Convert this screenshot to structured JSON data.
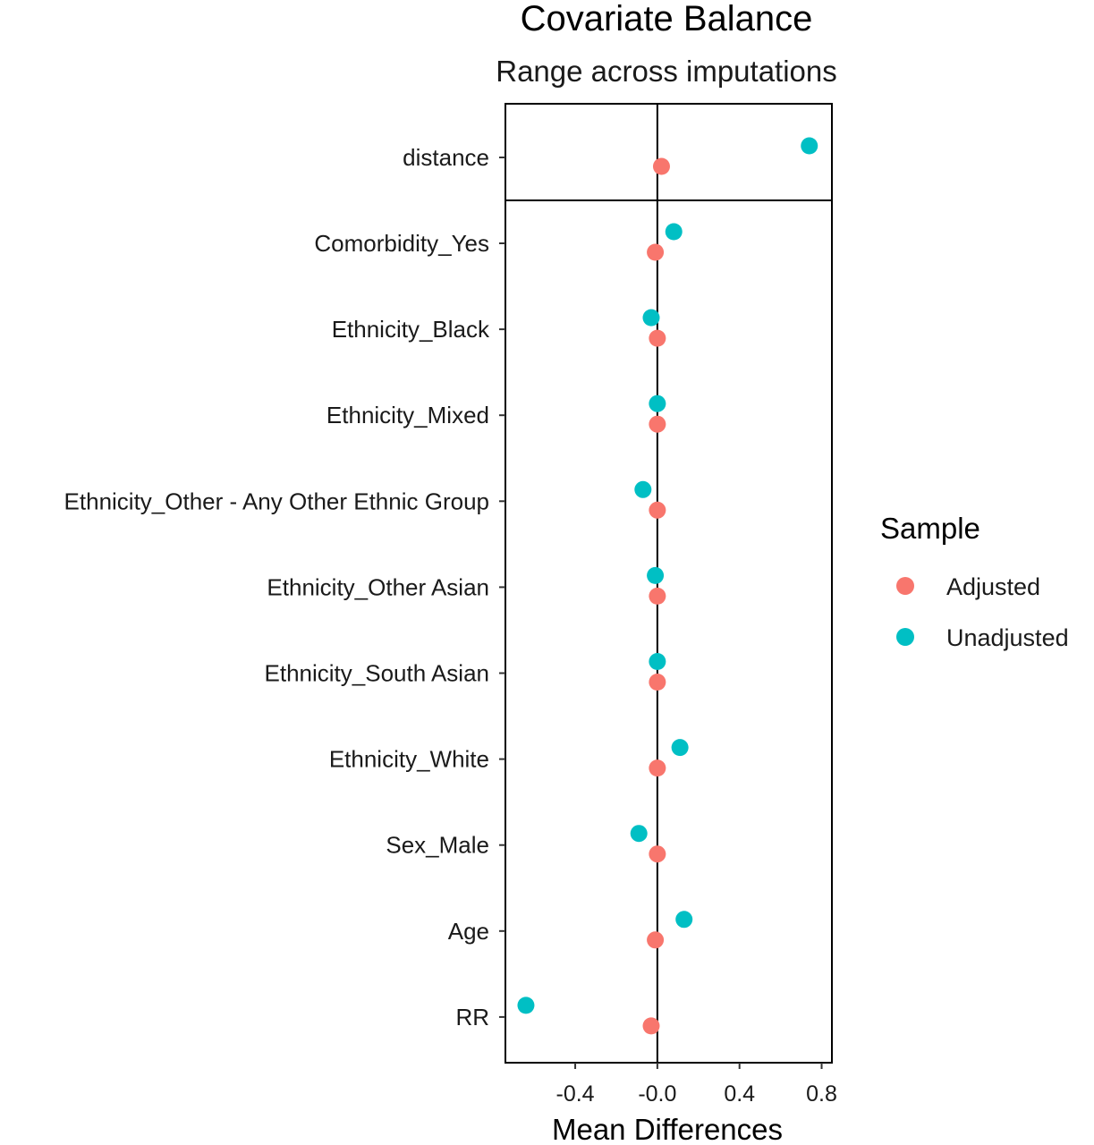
{
  "chart_data": {
    "type": "scatter",
    "title": "Covariate Balance",
    "subtitle": "Range across imputations",
    "xlabel": "Mean Differences",
    "ylabel": "",
    "xlim": [
      -0.74,
      0.85
    ],
    "xticks": [
      -0.4,
      0.0,
      0.4,
      0.8
    ],
    "xtick_labels": [
      "-0.4",
      "-0.0",
      "0.4",
      "0.8"
    ],
    "grid": false,
    "zero_line": 0,
    "categories": [
      "distance",
      "Comorbidity_Yes",
      "Ethnicity_Black",
      "Ethnicity_Mixed",
      "Ethnicity_Other - Any Other Ethnic Group",
      "Ethnicity_Other Asian",
      "Ethnicity_South Asian",
      "Ethnicity_White",
      "Sex_Male",
      "Age",
      "RR"
    ],
    "separated_categories": [
      "distance"
    ],
    "series": [
      {
        "name": "Adjusted",
        "color": "#F8766D",
        "values": [
          0.02,
          -0.01,
          0.0,
          0.0,
          0.0,
          0.0,
          0.0,
          0.0,
          0.0,
          -0.01,
          -0.03
        ]
      },
      {
        "name": "Unadjusted",
        "color": "#00BFC4",
        "values": [
          0.74,
          0.08,
          -0.03,
          0.0,
          -0.07,
          -0.01,
          0.0,
          0.11,
          -0.09,
          0.13,
          -0.64
        ]
      }
    ],
    "legend": {
      "title": "Sample",
      "position": "right"
    }
  }
}
